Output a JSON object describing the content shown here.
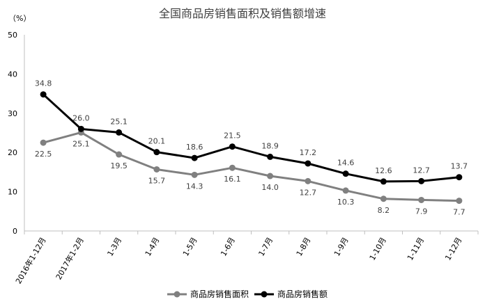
{
  "chart_data": {
    "type": "line",
    "title": "全国商品房销售面积及销售额增速",
    "ylabel": "（%）",
    "xlabel": "",
    "ylim": [
      0,
      50
    ],
    "yticks": [
      0,
      10,
      20,
      30,
      40,
      50
    ],
    "grid": false,
    "legend_position": "bottom",
    "categories": [
      "2016年1-12月",
      "2017年1-2月",
      "1-3月",
      "1-4月",
      "1-5月",
      "1-6月",
      "1-7月",
      "1-8月",
      "1-9月",
      "1-10月",
      "1-11月",
      "1-12月"
    ],
    "series": [
      {
        "name": "商品房销售面积",
        "color": "#808080",
        "values": [
          22.5,
          25.1,
          19.5,
          15.7,
          14.3,
          16.1,
          14.0,
          12.7,
          10.3,
          8.2,
          7.9,
          7.7
        ],
        "labels": [
          "22.5",
          "25.1",
          "19.5",
          "15.7",
          "14.3",
          "16.1",
          "14.0",
          "12.7",
          "10.3",
          "8.2",
          "7.9",
          "7.7"
        ],
        "label_position": "below"
      },
      {
        "name": "商品房销售额",
        "color": "#000000",
        "values": [
          34.8,
          26.0,
          25.1,
          20.1,
          18.6,
          21.5,
          18.9,
          17.2,
          14.6,
          12.6,
          12.7,
          13.7
        ],
        "labels": [
          "34.8",
          "26.0",
          "25.1",
          "20.1",
          "18.6",
          "21.5",
          "18.9",
          "17.2",
          "14.6",
          "12.6",
          "12.7",
          "13.7"
        ],
        "label_position": "above"
      }
    ]
  }
}
